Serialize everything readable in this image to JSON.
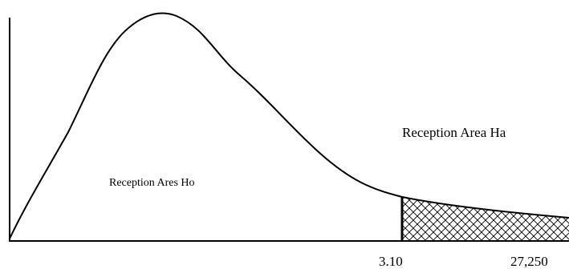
{
  "labels": {
    "acceptance_h0": "Reception Ares Ho",
    "rejection_ha": "Reception Area Ha",
    "critical_value": "3.10",
    "test_statistic": "27,250"
  },
  "colors": {
    "stroke": "#000000",
    "background": "#ffffff"
  }
}
